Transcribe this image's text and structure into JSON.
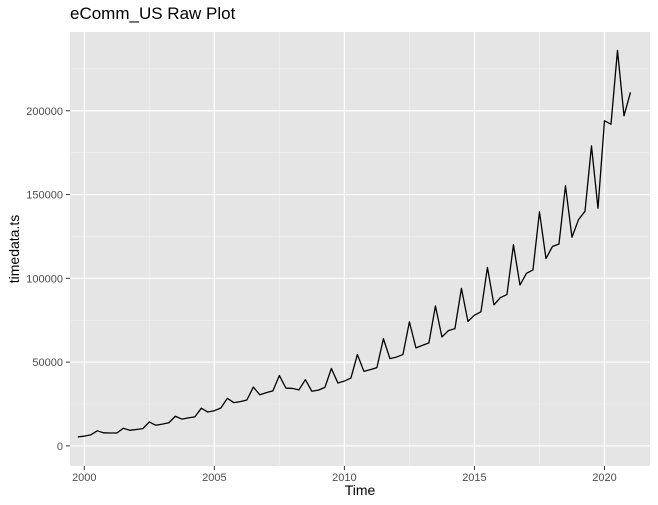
{
  "chart_data": {
    "type": "line",
    "title": "eComm_US Raw Plot",
    "xlabel": "Time",
    "ylabel": "timedata.ts",
    "xlim": [
      1999.45,
      2021.75
    ],
    "ylim": [
      -12000,
      247000
    ],
    "x_ticks": [
      2000,
      2005,
      2010,
      2015,
      2020
    ],
    "x_tick_labels": [
      "2000",
      "2005",
      "2010",
      "2015",
      "2020"
    ],
    "y_ticks": [
      0,
      50000,
      100000,
      150000,
      200000
    ],
    "y_tick_labels": [
      "0",
      "50000",
      "100000",
      "150000",
      "200000"
    ],
    "grid": true,
    "series": [
      {
        "start": 1999.75,
        "step": 0.25,
        "values": [
          5400,
          5800,
          6600,
          9000,
          7800,
          7700,
          7700,
          10500,
          9300,
          9800,
          10300,
          14300,
          12300,
          13000,
          13800,
          17700,
          16000,
          16700,
          17300,
          22500,
          20200,
          21000,
          22600,
          28400,
          25800,
          26400,
          27400,
          35100,
          30500,
          31800,
          32800,
          42000,
          34500,
          34300,
          33400,
          39500,
          32600,
          33300,
          34900,
          46200,
          37500,
          38700,
          40500,
          54500,
          44500,
          45500,
          46700,
          64000,
          52100,
          53000,
          54500,
          74000,
          58500,
          60000,
          61500,
          83500,
          65000,
          68800,
          70000,
          94000,
          74300,
          78000,
          80000,
          106500,
          84200,
          88500,
          90300,
          120000,
          96000,
          103000,
          105000,
          139700,
          111800,
          119000,
          120500,
          155200,
          124500,
          135000,
          140000,
          179000,
          141800,
          194000,
          192000,
          236000,
          197000,
          211000
        ]
      }
    ]
  }
}
